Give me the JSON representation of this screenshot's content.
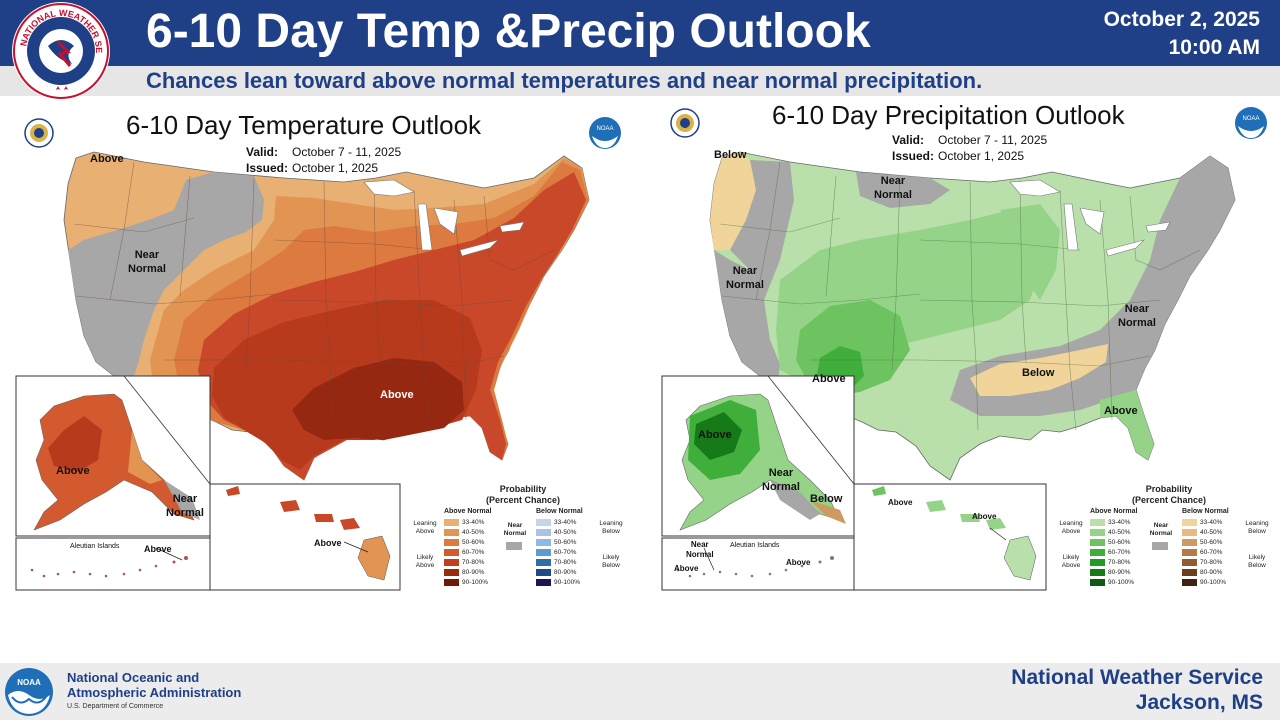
{
  "header": {
    "title": "6-10 Day Temp &Precip Outlook",
    "date": "October 2, 2025",
    "time": "10:00 AM",
    "subtitle": "Chances lean toward above normal temperatures and near normal precipitation.",
    "logo_icon": "nws-logo-icon",
    "logo_text": "NATIONAL WEATHER SERVICE"
  },
  "temperature_map": {
    "title": "6-10 Day Temperature Outlook",
    "valid_label": "Valid:",
    "valid_value": "October 7 - 11, 2025",
    "issued_label": "Issued:",
    "issued_value": "October 1, 2025",
    "labels": {
      "nw_above": "Above",
      "west_near_normal": "Near\nNormal",
      "south_above": "Above",
      "alaska_above": "Above",
      "alaska_near_normal": "Near\nNormal",
      "aleutian": "Aleutian Islands",
      "aleutian_above": "Above",
      "hawaii_above": "Above"
    }
  },
  "precipitation_map": {
    "title": "6-10 Day Precipitation Outlook",
    "valid_label": "Valid:",
    "valid_value": "October 7 - 11, 2025",
    "issued_label": "Issued:",
    "issued_value": "October 1, 2025",
    "labels": {
      "nw_below": "Below",
      "north_near_normal": "Near\nNormal",
      "west_near_normal": "Near\nNormal",
      "sw_above": "Above",
      "east_near_normal": "Near\nNormal",
      "southeast_below": "Below",
      "florida_above": "Above",
      "alaska_above": "Above",
      "alaska_near_normal": "Near\nNormal",
      "alaska_below": "Below",
      "aleutian": "Aleutian Islands",
      "aleutian_near_normal": "Near\nNormal",
      "aleutian_above": "Above",
      "aleutian_above_2": "Above",
      "hawaii_above_1": "Above",
      "hawaii_above_2": "Above"
    }
  },
  "legend": {
    "title": "Probability\n(Percent Chance)",
    "near_normal": "Near\nNormal",
    "temp_above_head": "Above Normal",
    "temp_below_head": "Below Normal",
    "precip_above_head": "Above Normal",
    "precip_below_head": "Below Normal",
    "leaning_above": "Leaning\nAbove",
    "likely_above": "Likely\nAbove",
    "leaning_below": "Leaning\nBelow",
    "likely_below": "Likely\nBelow",
    "ranges": [
      "33-40%",
      "40-50%",
      "50-60%",
      "60-70%",
      "70-80%",
      "80-90%",
      "90-100%"
    ],
    "temp_above_colors": [
      "#e8b072",
      "#e29552",
      "#dc7a40",
      "#d35a2e",
      "#bf3f1e",
      "#9a2b10",
      "#6e1a06"
    ],
    "temp_below_colors": [
      "#c6d4ea",
      "#a9c3e6",
      "#8fb8e2",
      "#5a9cd3",
      "#2c6ea8",
      "#204a86",
      "#1d1655"
    ],
    "precip_above_colors": [
      "#b9e0ab",
      "#95d488",
      "#6cc35f",
      "#3fae3a",
      "#239a25",
      "#157a17",
      "#0f5a12"
    ],
    "precip_below_colors": [
      "#f0d49a",
      "#e6ba80",
      "#cf9a5f",
      "#b9784a",
      "#935a32",
      "#6c3e1f",
      "#402210"
    ],
    "near_normal_color": "#a7a7a7"
  },
  "footer": {
    "agency_name": "National Oceanic and\nAtmospheric Administration",
    "department": "U.S. Department of Commerce",
    "office_name": "National Weather Service",
    "office_location": "Jackson, MS",
    "logo_icon": "noaa-logo-icon"
  }
}
